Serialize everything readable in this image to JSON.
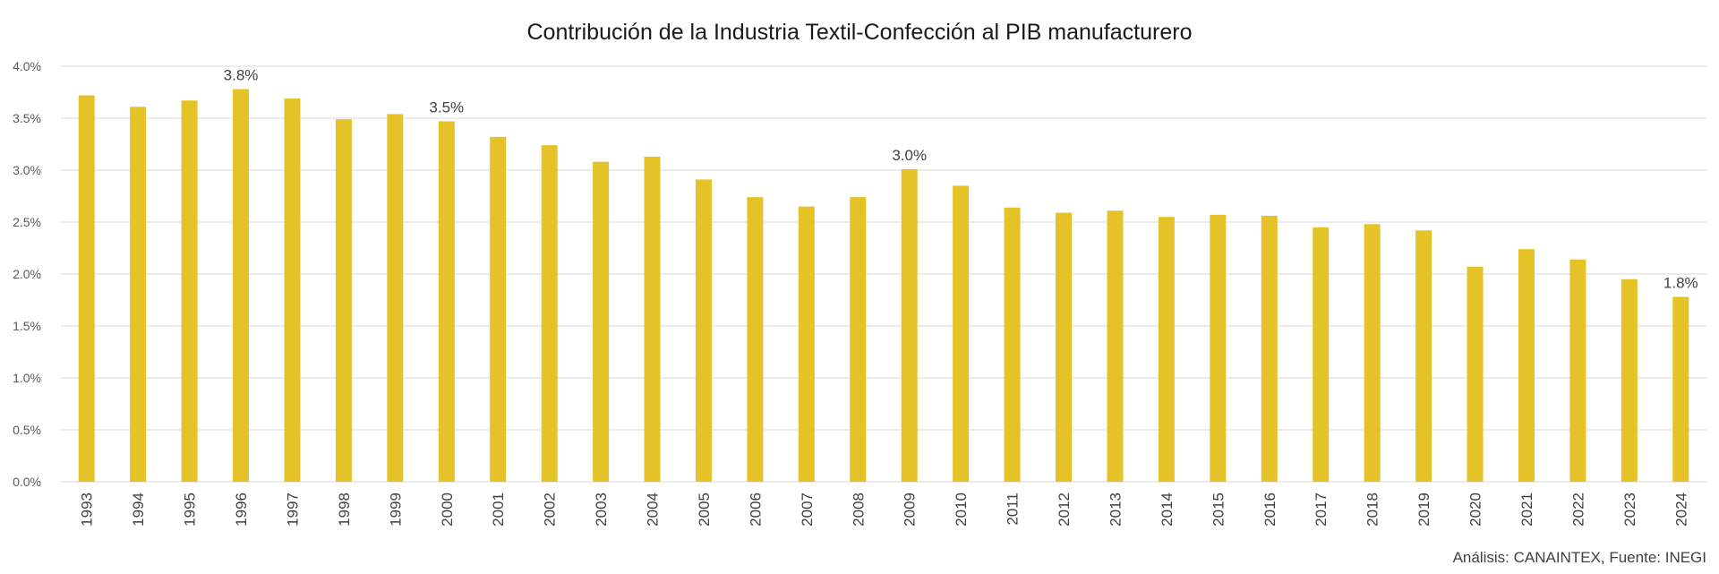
{
  "chart_data": {
    "type": "bar",
    "title": "Contribución de la Industria Textil-Confección al PIB manufacturero",
    "source": "Análisis: CANAINTEX, Fuente: INEGI",
    "xlabel": "",
    "ylabel": "",
    "ylim": [
      0,
      4.0
    ],
    "yticks": [
      "0.0%",
      "0.5%",
      "1.0%",
      "1.5%",
      "2.0%",
      "2.5%",
      "3.0%",
      "3.5%",
      "4.0%"
    ],
    "grid": true,
    "bar_color": "#E6C229",
    "grid_color": "#d9d9d9",
    "categories": [
      "1993",
      "1994",
      "1995",
      "1996",
      "1997",
      "1998",
      "1999",
      "2000",
      "2001",
      "2002",
      "2003",
      "2004",
      "2005",
      "2006",
      "2007",
      "2008",
      "2009",
      "2010",
      "2011",
      "2012",
      "2013",
      "2014",
      "2015",
      "2016",
      "2017",
      "2018",
      "2019",
      "2020",
      "2021",
      "2022",
      "2023",
      "2024"
    ],
    "values": [
      3.72,
      3.61,
      3.67,
      3.78,
      3.69,
      3.49,
      3.54,
      3.47,
      3.32,
      3.24,
      3.08,
      3.13,
      2.91,
      2.74,
      2.65,
      2.74,
      3.01,
      2.85,
      2.64,
      2.59,
      2.61,
      2.55,
      2.57,
      2.56,
      2.45,
      2.48,
      2.42,
      2.07,
      2.24,
      2.14,
      1.95,
      1.78
    ],
    "data_labels": [
      {
        "category": "1996",
        "text": "3.8%"
      },
      {
        "category": "2000",
        "text": "3.5%"
      },
      {
        "category": "2009",
        "text": "3.0%"
      },
      {
        "category": "2024",
        "text": "1.8%"
      }
    ]
  }
}
